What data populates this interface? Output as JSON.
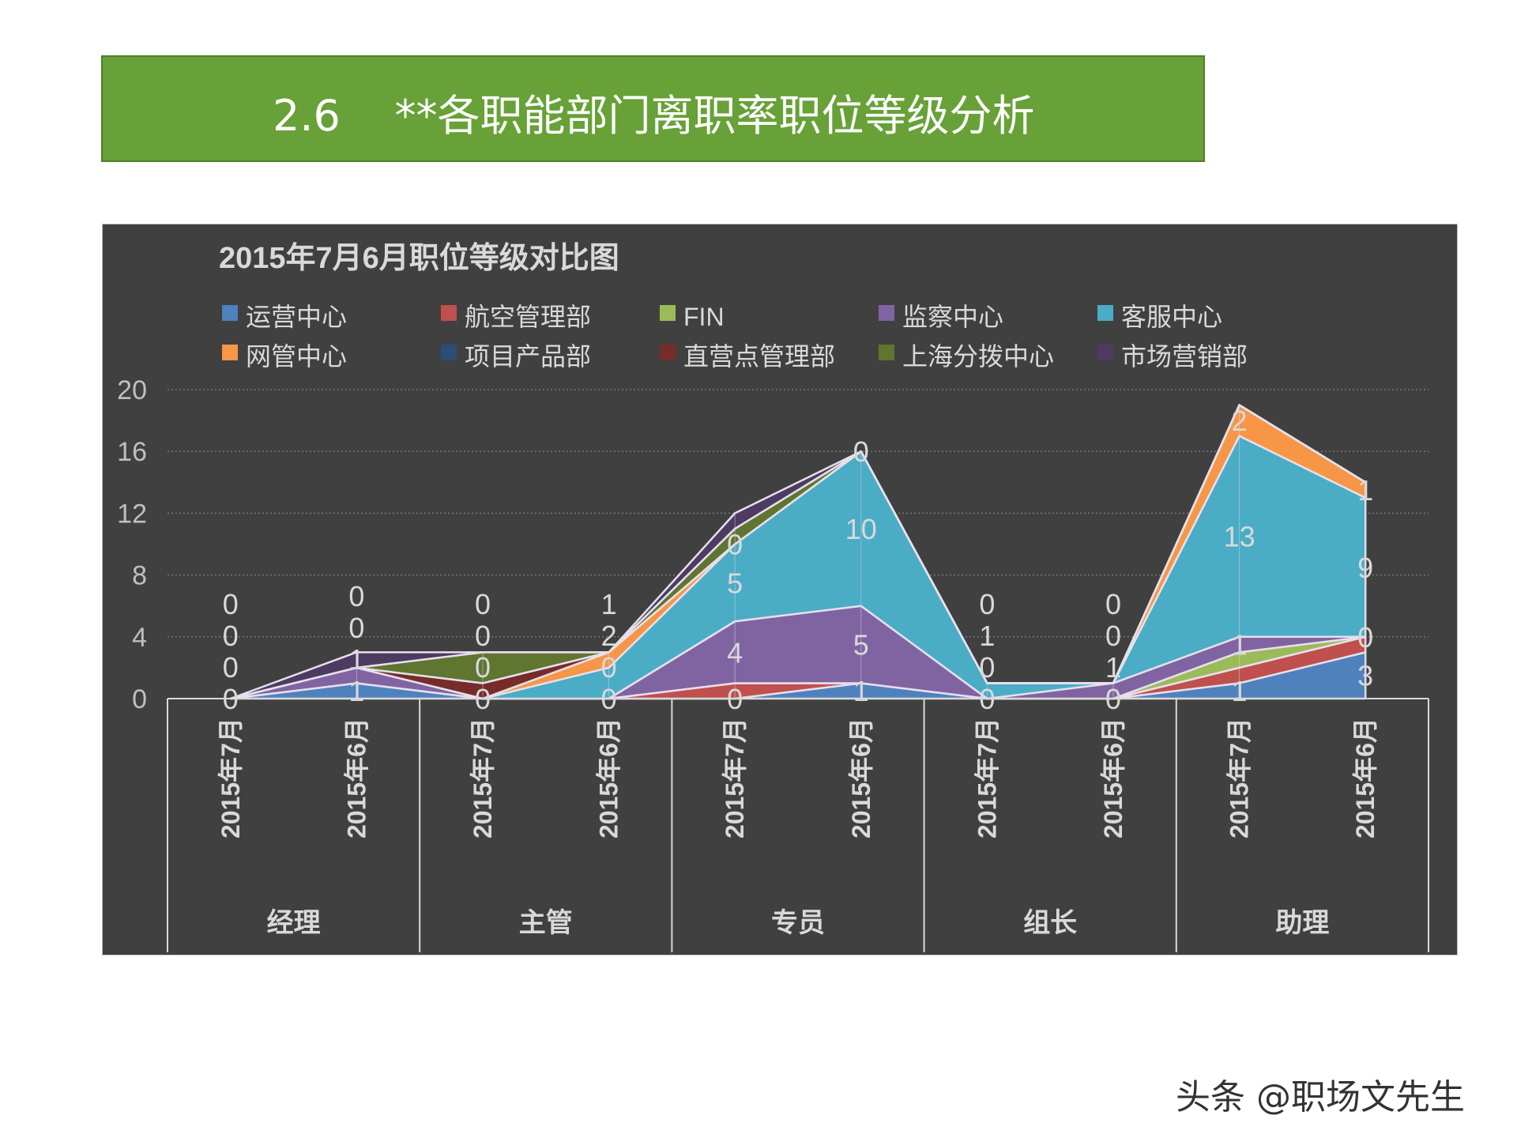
{
  "header": {
    "title": "2.6    **各职能部门离职率职位等级分析"
  },
  "watermark": "头条 @职场文先生",
  "chart_data": {
    "type": "area",
    "stacked": true,
    "title": "2015年7月6月职位等级对比图",
    "background": "#404040",
    "legend_position": "top",
    "grid": true,
    "ylim": [
      0,
      20
    ],
    "yticks": [
      0,
      4,
      8,
      12,
      16,
      20
    ],
    "groups": [
      "经理",
      "主管",
      "专员",
      "组长",
      "助理"
    ],
    "categories": [
      "2015年7月",
      "2015年6月",
      "2015年7月",
      "2015年6月",
      "2015年7月",
      "2015年6月",
      "2015年7月",
      "2015年6月",
      "2015年7月",
      "2015年6月"
    ],
    "series": [
      {
        "name": "运营中心",
        "color": "#4f81bd",
        "values": [
          0,
          1,
          0,
          0,
          0,
          1,
          0,
          0,
          1,
          3
        ]
      },
      {
        "name": "航空管理部",
        "color": "#c0504d",
        "values": [
          0,
          0,
          0,
          0,
          1,
          0,
          0,
          0,
          1,
          1
        ]
      },
      {
        "name": "FIN",
        "color": "#9bbb59",
        "values": [
          0,
          0,
          0,
          0,
          0,
          0,
          0,
          0,
          1,
          0
        ]
      },
      {
        "name": "监察中心",
        "color": "#8064a2",
        "values": [
          0,
          1,
          0,
          0,
          4,
          5,
          0,
          1,
          1,
          0
        ]
      },
      {
        "name": "客服中心",
        "color": "#4bacc6",
        "values": [
          0,
          0,
          0,
          2,
          5,
          10,
          1,
          0,
          13,
          9
        ]
      },
      {
        "name": "网管中心",
        "color": "#f79646",
        "values": [
          0,
          0,
          0,
          1,
          0,
          0,
          0,
          0,
          2,
          1
        ]
      },
      {
        "name": "项目产品部",
        "color": "#2c4d75",
        "values": [
          0,
          0,
          0,
          0,
          0,
          0,
          0,
          0,
          0,
          0
        ]
      },
      {
        "name": "直营点管理部",
        "color": "#772c2a",
        "values": [
          0,
          0,
          1,
          0,
          0,
          0,
          0,
          0,
          0,
          0
        ]
      },
      {
        "name": "上海分拨中心",
        "color": "#5f7530",
        "values": [
          0,
          0,
          2,
          0,
          1,
          0,
          0,
          0,
          0,
          0
        ]
      },
      {
        "name": "市场营销部",
        "color": "#4d3b62",
        "values": [
          0,
          1,
          0,
          0,
          1,
          0,
          0,
          0,
          0,
          0
        ]
      }
    ],
    "labeled_series": [
      0,
      3,
      4,
      5
    ]
  }
}
